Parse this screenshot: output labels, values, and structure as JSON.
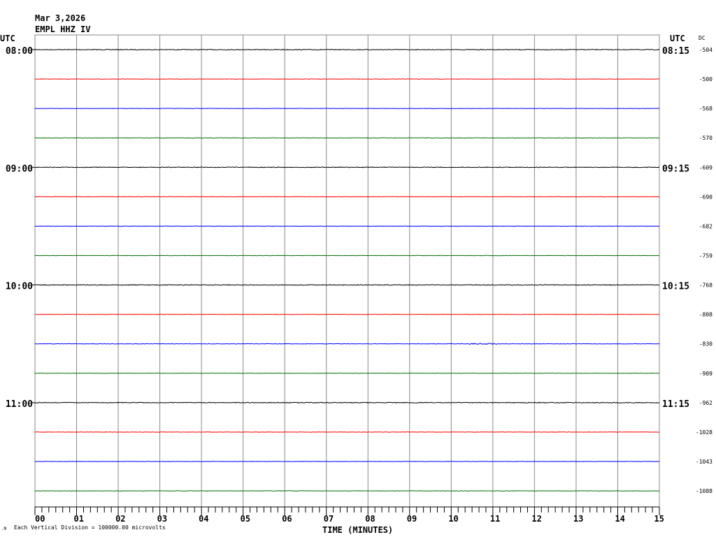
{
  "header": {
    "date": "Mar 3,2026",
    "station": "EMPL HHZ IV"
  },
  "chart_data": {
    "type": "line",
    "title": "Mar 3,2026",
    "subtitle": "EMPL HHZ IV",
    "left_axis_label": "UTC",
    "right_axis_label": "UTC",
    "dc_label": "DC",
    "xlabel": "TIME (MINUTES)",
    "xlim": [
      0,
      15
    ],
    "x_ticks": [
      "00",
      "01",
      "02",
      "03",
      "04",
      "05",
      "06",
      "07",
      "08",
      "09",
      "10",
      "11",
      "12",
      "13",
      "14",
      "15"
    ],
    "minor_tick_seconds": 10,
    "grid": true,
    "scale_note": "Each Vertical Division = 100000.00 microvolts",
    "colors": [
      "#000000",
      "#ff0000",
      "#0000ff",
      "#007000"
    ],
    "left_time_labels": {
      "0": "08:00",
      "4": "09:00",
      "8": "10:00",
      "12": "11:00"
    },
    "right_time_labels": {
      "0": "08:15",
      "4": "09:15",
      "8": "10:15",
      "12": "11:15"
    },
    "dc_offsets": [
      "-504",
      "-500",
      "-568",
      "-570",
      "-609",
      "-690",
      "-682",
      "-759",
      "-768",
      "-808",
      "-830",
      "-909",
      "-962",
      "-1028",
      "-1043",
      "-1088"
    ],
    "events": [
      {
        "row": 10,
        "minute_start": 10.4,
        "minute_end": 11.1
      }
    ]
  }
}
